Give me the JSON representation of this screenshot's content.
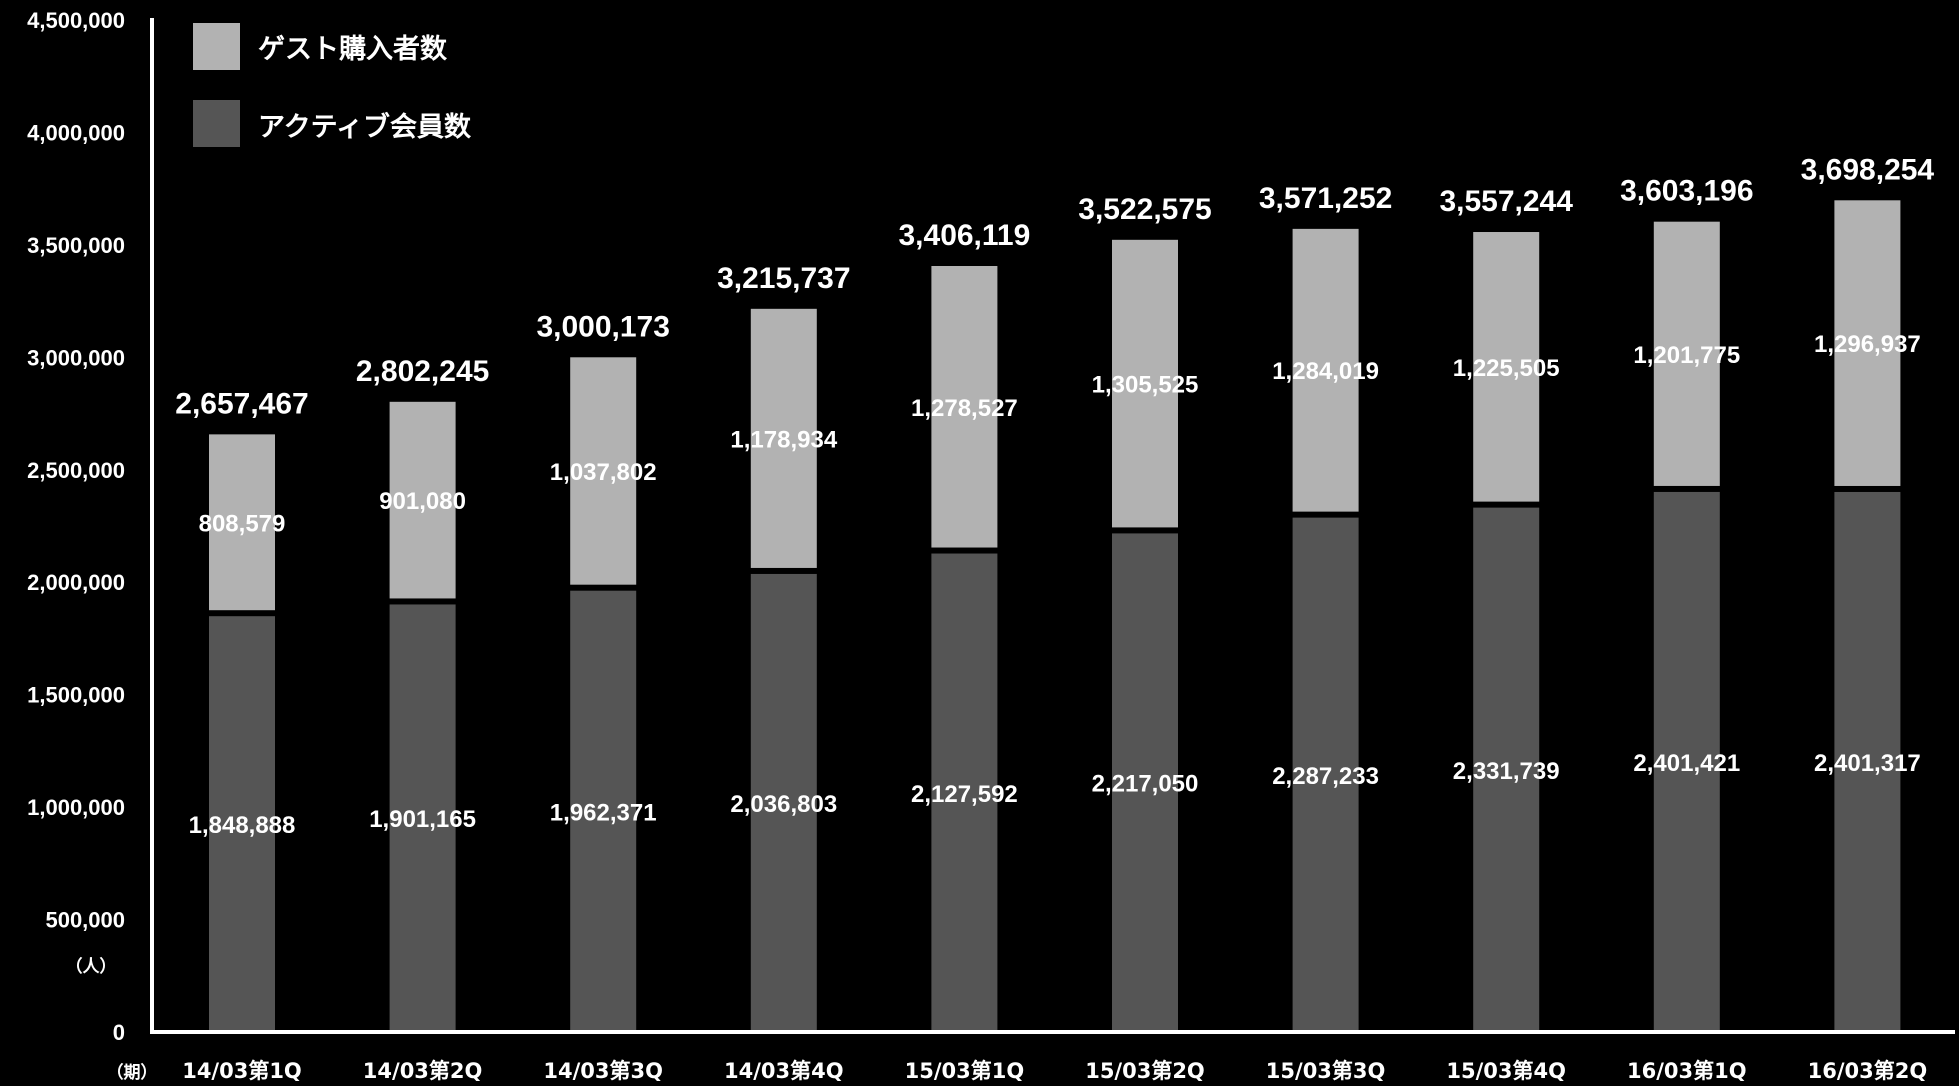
{
  "chart_data": {
    "type": "bar",
    "stacked": true,
    "categories": [
      "14/03第1Q",
      "14/03第2Q",
      "14/03第3Q",
      "14/03第4Q",
      "15/03第1Q",
      "15/03第2Q",
      "15/03第3Q",
      "15/03第4Q",
      "16/03第1Q",
      "16/03第2Q"
    ],
    "series": [
      {
        "name": "アクティブ会員数",
        "color": "#555555",
        "values": [
          1848888,
          1901165,
          1962371,
          2036803,
          2127592,
          2217050,
          2287233,
          2331739,
          2401421,
          2401317
        ],
        "labels": [
          "1,848,888",
          "1,901,165",
          "1,962,371",
          "2,036,803",
          "2,127,592",
          "2,217,050",
          "2,287,233",
          "2,331,739",
          "2,401,421",
          "2,401,317"
        ]
      },
      {
        "name": "ゲスト購入者数",
        "color": "#b2b2b2",
        "values": [
          808579,
          901080,
          1037802,
          1178934,
          1278527,
          1305525,
          1284019,
          1225505,
          1201775,
          1296937
        ],
        "labels": [
          "808,579",
          "901,080",
          "1,037,802",
          "1,178,934",
          "1,278,527",
          "1,305,525",
          "1,284,019",
          "1,225,505",
          "1,201,775",
          "1,296,937"
        ]
      }
    ],
    "totals": [
      2657467,
      2802245,
      3000173,
      3215737,
      3406119,
      3522575,
      3571252,
      3557244,
      3603196,
      3698254
    ],
    "total_labels": [
      "2,657,467",
      "2,802,245",
      "3,000,173",
      "3,215,737",
      "3,406,119",
      "3,522,575",
      "3,571,252",
      "3,557,244",
      "3,603,196",
      "3,698,254"
    ],
    "ylim": [
      0,
      4500000
    ],
    "yticks": [
      0,
      500000,
      1000000,
      1500000,
      2000000,
      2500000,
      3000000,
      3500000,
      4000000,
      4500000
    ],
    "ytick_labels": [
      "0",
      "500,000",
      "1,000,000",
      "1,500,000",
      "2,000,000",
      "2,500,000",
      "3,000,000",
      "3,500,000",
      "4,000,000",
      "4,500,000"
    ],
    "ylabel_unit": "（人）",
    "xlabel_unit": "（期）",
    "legend": {
      "placement": "top-left",
      "items": [
        "ゲスト購入者数",
        "アクティブ会員数"
      ]
    },
    "grid": false,
    "background": "#000000",
    "axis_color": "#ffffff"
  }
}
